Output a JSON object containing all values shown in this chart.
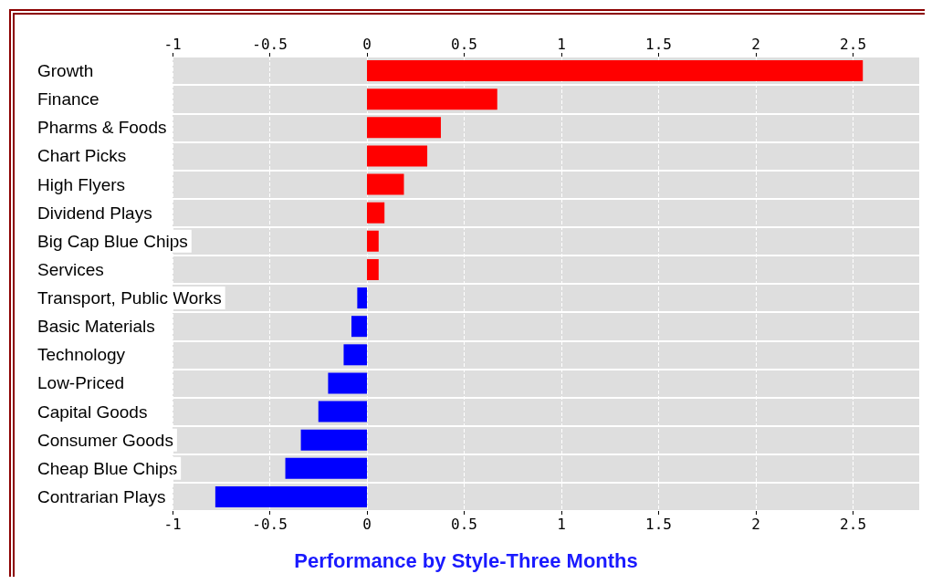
{
  "chart_data": {
    "type": "bar",
    "orientation": "horizontal",
    "title": "Performance by Style-Three Months",
    "categories": [
      "Growth",
      "Finance",
      "Pharms & Foods",
      "Chart Picks",
      "High Flyers",
      "Dividend Plays",
      "Big Cap Blue Chips",
      "Services",
      "Transport, Public Works",
      "Basic Materials",
      "Technology",
      "Low-Priced",
      "Capital Goods",
      "Consumer Goods",
      "Cheap Blue Chips",
      "Contrarian Plays"
    ],
    "values": [
      2.55,
      0.67,
      0.38,
      0.31,
      0.19,
      0.09,
      0.06,
      0.06,
      -0.05,
      -0.08,
      -0.12,
      -0.2,
      -0.25,
      -0.34,
      -0.42,
      -0.78
    ],
    "colors": [
      "#ff0000",
      "#ff0000",
      "#ff0000",
      "#ff0000",
      "#ff0000",
      "#ff0000",
      "#ff0000",
      "#ff0000",
      "#0000ff",
      "#0000ff",
      "#0000ff",
      "#0000ff",
      "#0000ff",
      "#0000ff",
      "#0000ff",
      "#0000ff"
    ],
    "xlim": [
      -1,
      2.84
    ],
    "xticks": [
      -1,
      -0.5,
      0,
      0.5,
      1,
      1.5,
      2,
      2.5
    ],
    "x2lim": [
      -1,
      2.84
    ],
    "x2ticks": [
      -1,
      -0.5,
      0,
      0.5,
      1,
      1.5,
      2,
      2.5
    ],
    "grid": "x"
  }
}
